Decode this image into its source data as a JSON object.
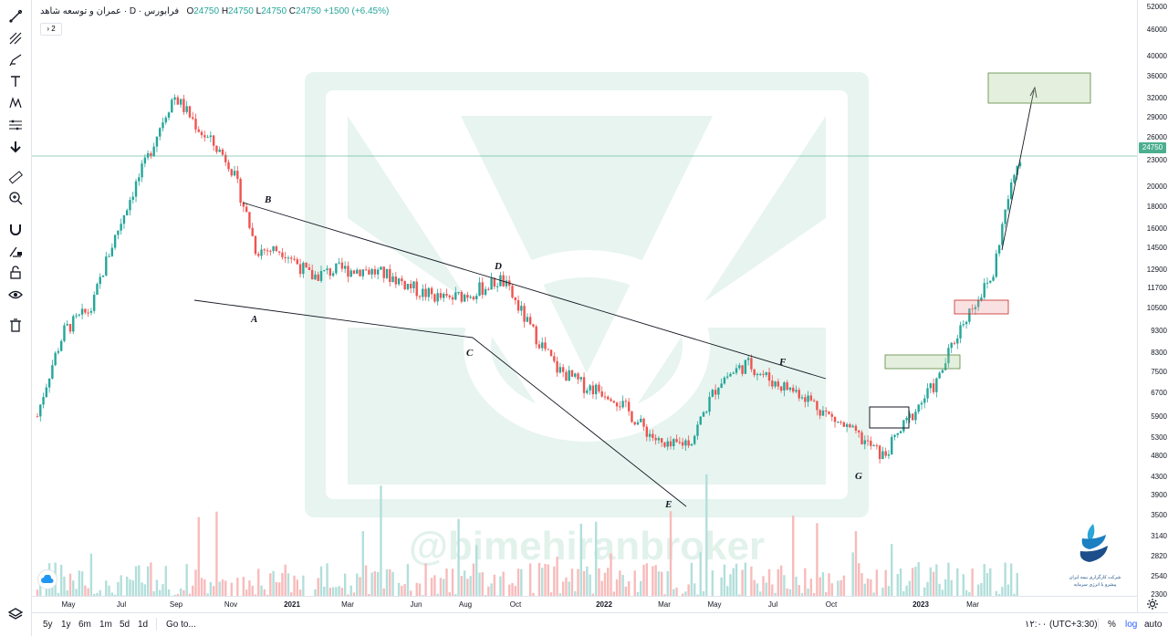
{
  "symbol": {
    "name": "عمران و توسعه شاهد",
    "interval": "D",
    "exchange": "فرابورس",
    "open_label": "O",
    "open": "24750",
    "high_label": "H",
    "high": "24750",
    "low_label": "L",
    "low": "24750",
    "close_label": "C",
    "close": "24750",
    "change": "+1500 (+6.45%)",
    "collapse_label": "2"
  },
  "watermark": {
    "text": "@bimehiranbroker"
  },
  "logo": {
    "line1": "شرکت کارگزاری بیمه ایران",
    "line2": "پیشرو با انرژی سرمایه"
  },
  "price_scale": {
    "ticks": [
      "52000",
      "46000",
      "40000",
      "36000",
      "32000",
      "29000",
      "26000",
      "23000",
      "20000",
      "18000",
      "16000",
      "14500",
      "12900",
      "11700",
      "10500",
      "9300",
      "8300",
      "7500",
      "6700",
      "5900",
      "5300",
      "4800",
      "4300",
      "3900",
      "3500",
      "3140",
      "2820",
      "2540",
      "2300"
    ],
    "last_price": "24750"
  },
  "time_scale": {
    "ticks": [
      "May",
      "Jul",
      "Sep",
      "Nov",
      "2021",
      "Mar",
      "Jun",
      "Aug",
      "Oct",
      "2022",
      "Mar",
      "May",
      "Jul",
      "Oct",
      "2023",
      "Mar"
    ]
  },
  "bottombar": {
    "ranges": [
      "5y",
      "1y",
      "6m",
      "1m",
      "5d",
      "1d"
    ],
    "goto": "Go to...",
    "time": "۱۲:۰۰ (UTC+3:30)",
    "percent": "%",
    "log": "log",
    "auto": "auto"
  },
  "toolbar": {
    "tools": [
      "cross-line-icon",
      "pitchfork-icon",
      "brush-icon",
      "text-icon",
      "pattern-icon",
      "measure-adjust-icon",
      "arrow-down-icon",
      "ruler-icon",
      "zoom-icon",
      "magnet-icon",
      "lock-drawing-icon",
      "lock-icon",
      "eye-icon",
      "trash-icon",
      "layers-icon"
    ]
  },
  "colors": {
    "up": "#26a69a",
    "down": "#ef5350",
    "up_volume": "#b2dfdb",
    "down_volume": "#f8bbbb",
    "last_price": "#4caf8f",
    "target_box": "#a5c98f",
    "stop_box": "#ef9a9a"
  },
  "chart_data": {
    "type": "line",
    "title": "",
    "y_scale": "log",
    "ylim": [
      2300,
      52000
    ],
    "x": [
      "2020-04",
      "2020-05",
      "2020-06",
      "2020-07",
      "2020-08",
      "2020-09",
      "2020-10",
      "2020-11",
      "2020-12",
      "2021-01",
      "2021-02",
      "2021-03",
      "2021-04",
      "2021-05",
      "2021-06",
      "2021-07",
      "2021-08",
      "2021-09",
      "2021-10",
      "2021-11",
      "2021-12",
      "2022-01",
      "2022-02",
      "2022-03",
      "2022-04",
      "2022-05",
      "2022-06",
      "2022-07",
      "2022-08",
      "2022-09",
      "2022-10",
      "2022-11",
      "2022-12",
      "2023-01",
      "2023-02",
      "2023-03",
      "2023-04"
    ],
    "series": [
      {
        "values": [
          6200,
          9800,
          11000,
          17000,
          24000,
          34000,
          28000,
          24000,
          15000,
          15000,
          13000,
          13500,
          13500,
          13000,
          12000,
          11500,
          12000,
          12800,
          10000,
          8000,
          7300,
          7000,
          6000,
          5200,
          5500,
          7500,
          8200,
          7400,
          7000,
          6200,
          5600,
          5000,
          6200,
          7500,
          10500,
          13000,
          24750
        ]
      }
    ],
    "annotations": [
      "A",
      "B",
      "C",
      "D",
      "E",
      "F",
      "G"
    ],
    "last_price": 24750,
    "target_zone": [
      32500,
      38500
    ],
    "support_zone": [
      11000,
      11600
    ]
  }
}
